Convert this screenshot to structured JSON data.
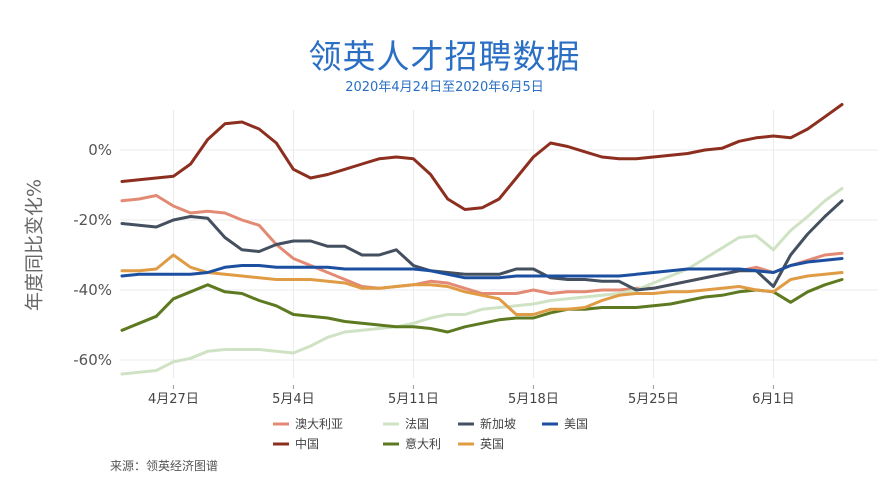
{
  "header": {
    "title": "领英人才招聘数据",
    "subtitle": "2020年4月24日至2020年6月5日"
  },
  "footer": {
    "source": "来源：领英经济图谱"
  },
  "colors": {
    "grid": "#ebebeb",
    "澳大利亚": "#e38a74",
    "中国": "#8c2f1f",
    "法国": "#cfe3c4",
    "意大利": "#5e7a21",
    "新加坡": "#44505f",
    "英国": "#e09b45",
    "美国": "#1d4fa0"
  },
  "chart_data": {
    "type": "line",
    "title": "领英人才招聘数据",
    "subtitle": "2020年4月24日至2020年6月5日",
    "ylabel": "年度同比变化%",
    "xlabel": "",
    "ylim": [
      -65,
      17
    ],
    "xlim": [
      0,
      42
    ],
    "yticks": [
      0,
      -20,
      -40,
      -60
    ],
    "ytick_labels": [
      "0%",
      "-20%",
      "-40%",
      "-60%"
    ],
    "xticks": [
      3,
      10,
      17,
      24,
      31,
      38
    ],
    "xtick_labels": [
      "4月27日",
      "5月4日",
      "5月11日",
      "5月18日",
      "5月25日",
      "6月1日"
    ],
    "grid": true,
    "legend_position": "bottom",
    "x": [
      0,
      1,
      2,
      3,
      4,
      5,
      6,
      7,
      8,
      9,
      10,
      11,
      12,
      13,
      14,
      15,
      16,
      17,
      18,
      19,
      20,
      21,
      22,
      23,
      24,
      25,
      26,
      27,
      28,
      29,
      30,
      31,
      32,
      33,
      34,
      35,
      36,
      37,
      38,
      39,
      40,
      41,
      42
    ],
    "series": [
      {
        "name": "澳大利亚",
        "values": [
          -14.5,
          -14,
          -13,
          -16,
          -18,
          -17.5,
          -18,
          -20,
          -21.5,
          -27,
          -31,
          -33,
          -35,
          -37,
          -39,
          -39.5,
          -39,
          -38.5,
          -37.5,
          -38,
          -39.5,
          -41,
          -41,
          -41,
          -40,
          -41,
          -40.5,
          -40.5,
          -40,
          -40,
          -39.5,
          -39.5,
          -38.5,
          -37.5,
          -36.5,
          -35.5,
          -34.5,
          -33.5,
          -35,
          -33,
          -31.5,
          -30,
          -29.5
        ]
      },
      {
        "name": "中国",
        "values": [
          -9,
          -8.5,
          -8,
          -7.5,
          -4,
          3,
          7.5,
          8,
          6,
          2,
          -5.5,
          -8,
          -7,
          -5.5,
          -4,
          -2.5,
          -2,
          -2.5,
          -7,
          -14,
          -17,
          -16.5,
          -14,
          -8,
          -2,
          2,
          1,
          -0.5,
          -2,
          -2.5,
          -2.5,
          -2,
          -1.5,
          -1,
          0,
          0.5,
          2.5,
          3.5,
          4,
          3.5,
          6,
          9.5,
          13
        ]
      },
      {
        "name": "法国",
        "values": [
          -64,
          -63.5,
          -63,
          -60.5,
          -59.5,
          -57.5,
          -57,
          -57,
          -57,
          -57.5,
          -58,
          -56,
          -53.5,
          -52,
          -51.5,
          -51,
          -50.5,
          -49.5,
          -48,
          -47,
          -47,
          -45.5,
          -45,
          -44.5,
          -44,
          -43,
          -42.5,
          -42,
          -41.5,
          -41,
          -40,
          -38,
          -36,
          -34,
          -31,
          -28,
          -25,
          -24.5,
          -28.5,
          -23,
          -19,
          -14.5,
          -11
        ]
      },
      {
        "name": "意大利",
        "values": [
          -51.5,
          -49.5,
          -47.5,
          -42.5,
          -40.5,
          -38.5,
          -40.5,
          -41,
          -43,
          -44.5,
          -47,
          -47.5,
          -48,
          -49,
          -49.5,
          -50,
          -50.5,
          -50.5,
          -51,
          -52,
          -50.5,
          -49.5,
          -48.5,
          -48,
          -48,
          -46.5,
          -45.5,
          -45.5,
          -45,
          -45,
          -45,
          -44.5,
          -44,
          -43,
          -42,
          -41.5,
          -40.5,
          -40,
          -40.5,
          -43.5,
          -40.5,
          -38.5,
          -37
        ]
      },
      {
        "name": "新加坡",
        "values": [
          -21,
          -21.5,
          -22,
          -20,
          -19,
          -19.5,
          -25,
          -28.5,
          -29,
          -27,
          -26,
          -26,
          -27.5,
          -27.5,
          -30,
          -30,
          -28.5,
          -33,
          -34.5,
          -35,
          -35.5,
          -35.5,
          -35.5,
          -34,
          -34,
          -36.5,
          -37,
          -37,
          -37.5,
          -37.5,
          -40,
          -39.5,
          -38.5,
          -37.5,
          -36.5,
          -35.5,
          -34.5,
          -34.5,
          -39,
          -30,
          -24,
          -19,
          -14.5
        ]
      },
      {
        "name": "英国",
        "values": [
          -34.5,
          -34.5,
          -34,
          -30,
          -33.5,
          -35,
          -35.5,
          -36,
          -36.5,
          -37,
          -37,
          -37,
          -37.5,
          -38,
          -39.5,
          -39.5,
          -39,
          -38.5,
          -38.5,
          -39,
          -40.5,
          -41.5,
          -42.5,
          -47,
          -47,
          -45.5,
          -45.5,
          -45,
          -43,
          -41.5,
          -41,
          -41,
          -40.5,
          -40.5,
          -40,
          -39.5,
          -39,
          -40,
          -40.5,
          -37,
          -36,
          -35.5,
          -35
        ]
      },
      {
        "name": "美国",
        "values": [
          -36,
          -35.5,
          -35.5,
          -35.5,
          -35.5,
          -35,
          -33.5,
          -33,
          -33,
          -33.5,
          -33.5,
          -33.5,
          -33.5,
          -34,
          -34,
          -34,
          -34,
          -34,
          -34.5,
          -35.5,
          -36.5,
          -36.5,
          -36.5,
          -36,
          -36,
          -36,
          -36,
          -36,
          -36,
          -36,
          -35.5,
          -35,
          -34.5,
          -34,
          -34,
          -34,
          -34,
          -34.5,
          -35,
          -33,
          -32,
          -31.5,
          -31
        ]
      }
    ]
  }
}
